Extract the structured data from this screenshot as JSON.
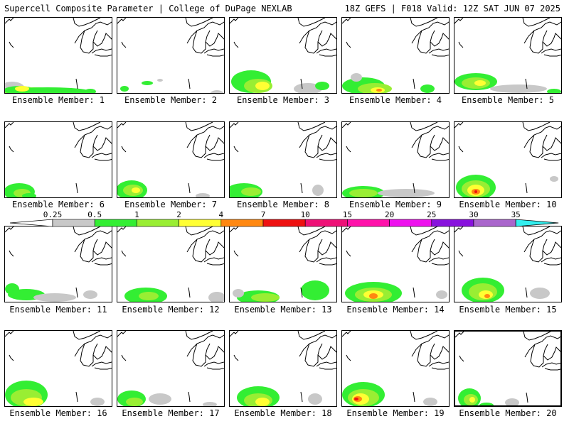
{
  "header": {
    "left": "Supercell Composite Parameter | College of DuPage NEXLAB",
    "right": "18Z GEFS | F018 Valid: 12Z SAT JUN 07 2025"
  },
  "colorbar": {
    "labels": [
      "0.25",
      "0.5",
      "1",
      "2",
      "4",
      "7",
      "10",
      "15",
      "20",
      "25",
      "30",
      "35"
    ],
    "colors": [
      "#c8c8c8",
      "#33ee33",
      "#99ee33",
      "#ffff33",
      "#ff8811",
      "#ee1111",
      "#ee1177",
      "#ff11aa",
      "#ee11ee",
      "#8811dd",
      "#aa66cc",
      "#33eeee"
    ]
  },
  "panels": [
    {
      "label": "Ensemble Member: 1"
    },
    {
      "label": "Ensemble Member: 2"
    },
    {
      "label": "Ensemble Member: 3"
    },
    {
      "label": "Ensemble Member: 4"
    },
    {
      "label": "Ensemble Member: 5"
    },
    {
      "label": "Ensemble Member: 6"
    },
    {
      "label": "Ensemble Member: 7"
    },
    {
      "label": "Ensemble Member: 8"
    },
    {
      "label": "Ensemble Member: 9"
    },
    {
      "label": "Ensemble Member: 10"
    },
    {
      "label": "Ensemble Member: 11"
    },
    {
      "label": "Ensemble Member: 12"
    },
    {
      "label": "Ensemble Member: 13"
    },
    {
      "label": "Ensemble Member: 14"
    },
    {
      "label": "Ensemble Member: 15"
    },
    {
      "label": "Ensemble Member: 16"
    },
    {
      "label": "Ensemble Member: 17"
    },
    {
      "label": "Ensemble Member: 18"
    },
    {
      "label": "Ensemble Member: 19"
    },
    {
      "label": "Ensemble Member: 20"
    }
  ]
}
